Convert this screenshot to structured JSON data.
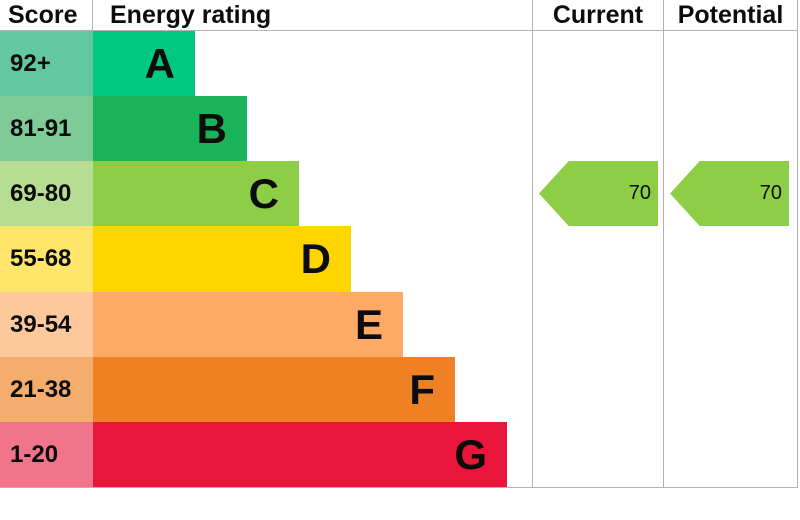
{
  "header": {
    "score": "Score",
    "energy_rating": "Energy rating",
    "current": "Current",
    "potential": "Potential"
  },
  "colors": {
    "grid_line": "#b1b4b6",
    "text": "#0b0c0c"
  },
  "chart_data": {
    "type": "bar",
    "title": "Energy rating",
    "xlabel": "",
    "ylabel": "Score",
    "grid": false,
    "legend_position": "none",
    "bands": [
      {
        "letter": "A",
        "score_range": "92+",
        "bar_color": "#00c781",
        "score_cell_color": "#63c8a2"
      },
      {
        "letter": "B",
        "score_range": "81-91",
        "bar_color": "#19b459",
        "score_cell_color": "#7fcb98"
      },
      {
        "letter": "C",
        "score_range": "69-80",
        "bar_color": "#8dce46",
        "score_cell_color": "#b6dd92"
      },
      {
        "letter": "D",
        "score_range": "55-68",
        "bar_color": "#ffd500",
        "score_cell_color": "#ffe56b"
      },
      {
        "letter": "E",
        "score_range": "39-54",
        "bar_color": "#fcaa65",
        "score_cell_color": "#fdc99c"
      },
      {
        "letter": "F",
        "score_range": "21-38",
        "bar_color": "#ef8023",
        "score_cell_color": "#f4ad6d"
      },
      {
        "letter": "G",
        "score_range": "1-20",
        "bar_color": "#e9153b",
        "score_cell_color": "#f0758a"
      }
    ],
    "current": {
      "label": "Current",
      "value": 70,
      "band": "C",
      "arrow_color": "#8dce46"
    },
    "potential": {
      "label": "Potential",
      "value": 70,
      "band": "C",
      "arrow_color": "#8dce46"
    }
  }
}
